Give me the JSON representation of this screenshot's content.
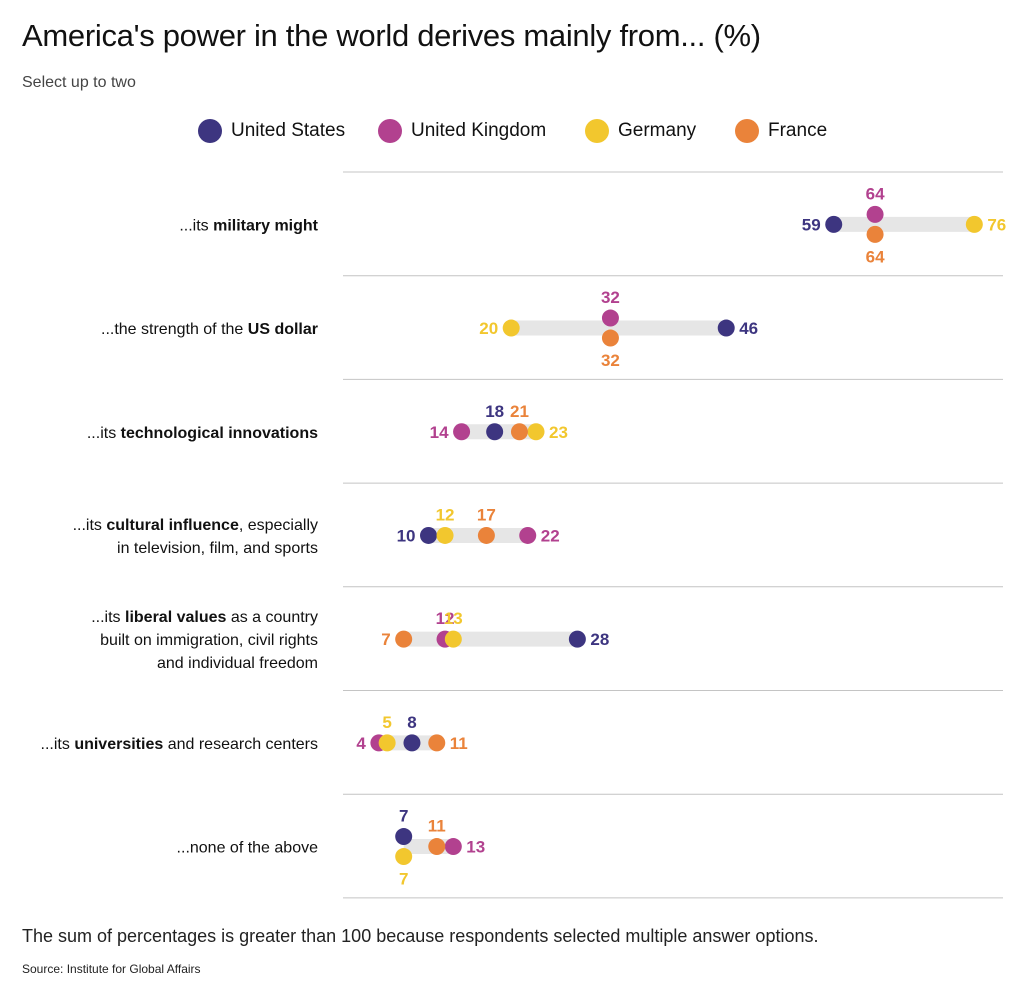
{
  "title": "America's power in the world derives mainly from... (%)",
  "subtitle": "Select up to two",
  "legend": [
    {
      "name": "United States",
      "color": "#3d3580"
    },
    {
      "name": "United Kingdom",
      "color": "#b2418f"
    },
    {
      "name": "Germany",
      "color": "#f2c72e"
    },
    {
      "name": "France",
      "color": "#ea833a"
    }
  ],
  "note": "The sum of percentages is greater than 100 because respondents selected multiple answer options.",
  "source": "Source: Institute for Global Affairs",
  "chart_data": {
    "type": "dot-plot",
    "series_order": [
      "United States",
      "United Kingdom",
      "Germany",
      "France"
    ],
    "categories": [
      {
        "label_lines": [
          [
            {
              "t": "...its ",
              "b": false
            },
            {
              "t": "military might",
              "b": true
            }
          ]
        ],
        "values": {
          "United States": 59,
          "United Kingdom": 64,
          "Germany": 76,
          "France": 64
        }
      },
      {
        "label_lines": [
          [
            {
              "t": "...the strength of the ",
              "b": false
            },
            {
              "t": "US dollar",
              "b": true
            }
          ]
        ],
        "values": {
          "United States": 46,
          "United Kingdom": 32,
          "Germany": 20,
          "France": 32
        }
      },
      {
        "label_lines": [
          [
            {
              "t": "...its ",
              "b": false
            },
            {
              "t": "technological innovations",
              "b": true
            }
          ]
        ],
        "values": {
          "United States": 18,
          "United Kingdom": 14,
          "Germany": 23,
          "France": 21
        }
      },
      {
        "label_lines": [
          [
            {
              "t": "...its ",
              "b": false
            },
            {
              "t": "cultural influence",
              "b": true
            },
            {
              "t": ", especially",
              "b": false
            }
          ],
          [
            {
              "t": "in television, film, and sports",
              "b": false
            }
          ]
        ],
        "values": {
          "United States": 10,
          "United Kingdom": 22,
          "Germany": 12,
          "France": 17
        }
      },
      {
        "label_lines": [
          [
            {
              "t": "...its ",
              "b": false
            },
            {
              "t": "liberal values",
              "b": true
            },
            {
              "t": " as a country",
              "b": false
            }
          ],
          [
            {
              "t": "built on immigration, civil rights",
              "b": false
            }
          ],
          [
            {
              "t": "and individual freedom",
              "b": false
            }
          ]
        ],
        "values": {
          "United States": 28,
          "United Kingdom": 12,
          "Germany": 13,
          "France": 7
        }
      },
      {
        "label_lines": [
          [
            {
              "t": "...its ",
              "b": false
            },
            {
              "t": "universities",
              "b": true
            },
            {
              "t": " and research centers",
              "b": false
            }
          ]
        ],
        "values": {
          "United States": 8,
          "United Kingdom": 4,
          "Germany": 5,
          "France": 11
        }
      },
      {
        "label_lines": [
          [
            {
              "t": "...none of the above",
              "b": false
            }
          ]
        ],
        "values": {
          "United States": 7,
          "United Kingdom": 13,
          "Germany": 7,
          "France": 11
        }
      }
    ],
    "x_range": [
      0,
      80
    ],
    "grid": false
  }
}
